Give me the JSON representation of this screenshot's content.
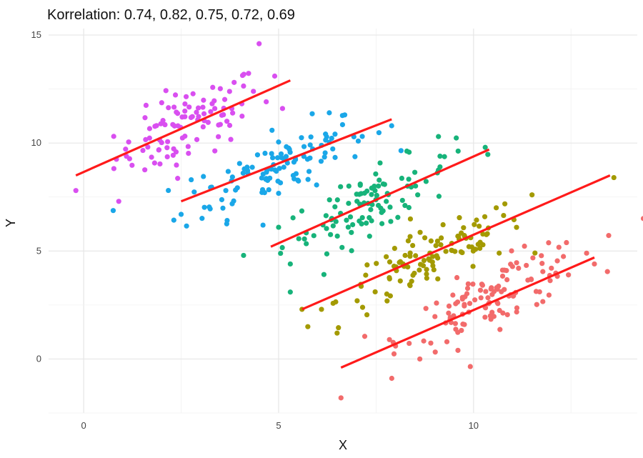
{
  "chart_data": {
    "type": "scatter",
    "title": "Korrelation: 0.74, 0.82, 0.75, 0.72, 0.69",
    "xlabel": "X",
    "ylabel": "Y",
    "xlim": [
      -0.9,
      14.2
    ],
    "ylim": [
      -2.5,
      15.3
    ],
    "x_ticks": [
      "0",
      "5",
      "10"
    ],
    "y_ticks": [
      "0",
      "5",
      "10",
      "15"
    ],
    "x_tick_values": [
      0,
      5,
      10
    ],
    "y_tick_values": [
      0,
      5,
      10,
      15
    ],
    "grid": true,
    "legend": "none",
    "fit_line_color": "#ff1a1a",
    "series": [
      {
        "color": "#d94ff0",
        "center": [
          2.7,
          10.8
        ],
        "spread": [
          1.1,
          1.2
        ],
        "count": 100,
        "extra_points": [
          [
            -0.2,
            7.8
          ],
          [
            0.9,
            7.3
          ],
          [
            4.5,
            14.6
          ],
          [
            5.1,
            11.6
          ],
          [
            4.9,
            13.1
          ]
        ],
        "fit": {
          "x": [
            -0.2,
            5.3
          ],
          "y": [
            8.5,
            12.9
          ]
        }
      },
      {
        "color": "#1aa7e8",
        "center": [
          4.9,
          8.9
        ],
        "spread": [
          1.4,
          1.1
        ],
        "count": 110,
        "extra_points": [
          [
            2.5,
            6.7
          ],
          [
            6.3,
            11.4
          ],
          [
            7.9,
            10.8
          ],
          [
            4.6,
            6.2
          ]
        ],
        "fit": {
          "x": [
            2.5,
            7.9
          ],
          "y": [
            7.3,
            11.1
          ]
        }
      },
      {
        "color": "#17b37a",
        "center": [
          7.3,
          7.2
        ],
        "spread": [
          1.3,
          1.0
        ],
        "count": 100,
        "extra_points": [
          [
            5.3,
            4.4
          ],
          [
            5.3,
            3.1
          ],
          [
            9.1,
            10.3
          ],
          [
            10.3,
            9.8
          ],
          [
            5.0,
            6.1
          ]
        ],
        "fit": {
          "x": [
            4.8,
            10.4
          ],
          "y": [
            5.2,
            9.7
          ]
        }
      },
      {
        "color": "#a39a00",
        "center": [
          8.9,
          4.6
        ],
        "spread": [
          1.4,
          1.0
        ],
        "count": 110,
        "extra_points": [
          [
            6.5,
            1.2
          ],
          [
            5.6,
            2.3
          ],
          [
            13.6,
            8.4
          ],
          [
            11.5,
            7.6
          ],
          [
            6.1,
            2.3
          ]
        ],
        "fit": {
          "x": [
            5.6,
            13.5
          ],
          "y": [
            2.3,
            8.5
          ]
        }
      },
      {
        "color": "#f26b6b",
        "center": [
          10.6,
          3.0
        ],
        "spread": [
          1.4,
          1.0
        ],
        "count": 120,
        "extra_points": [
          [
            6.6,
            -1.8
          ],
          [
            8.0,
            0.6
          ],
          [
            9.6,
            0.4
          ],
          [
            12.9,
            4.9
          ],
          [
            13.1,
            4.4
          ]
        ],
        "fit": {
          "x": [
            6.6,
            13.1
          ],
          "y": [
            -0.4,
            4.7
          ]
        }
      }
    ]
  }
}
